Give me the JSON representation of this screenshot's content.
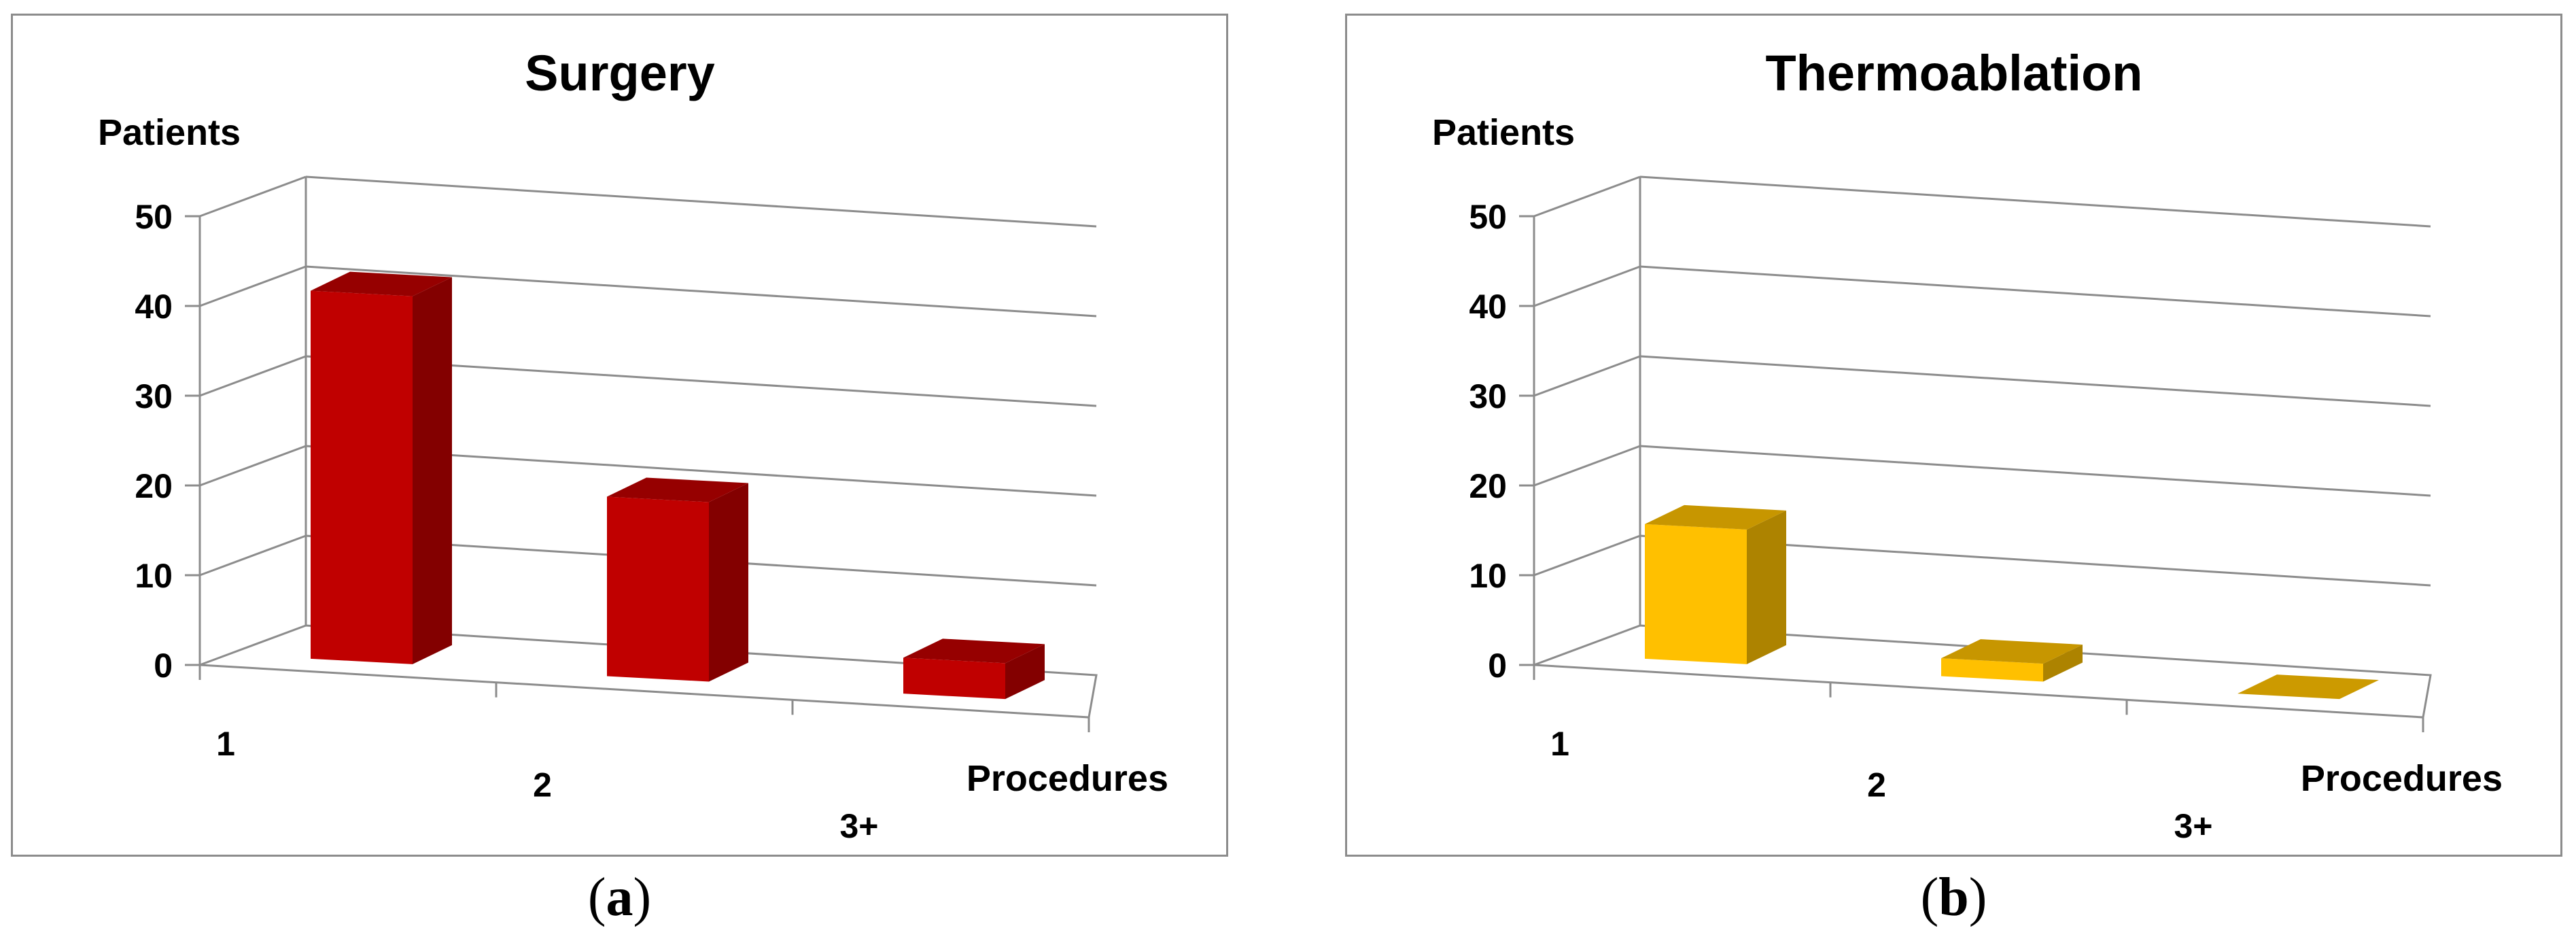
{
  "chart_data": [
    {
      "type": "bar",
      "title": "Surgery",
      "ylabel": "Patients",
      "xlabel": "Procedures",
      "categories": [
        "1",
        "2",
        "3+"
      ],
      "values": [
        41,
        20,
        4
      ],
      "ylim": [
        0,
        50
      ],
      "yticks": [
        "0",
        "10",
        "20",
        "30",
        "40",
        "50"
      ],
      "grid": true,
      "style": "3d-column",
      "color": "#c00000",
      "sub_caption": "a"
    },
    {
      "type": "bar",
      "title": "Thermoablation",
      "ylabel": "Patients",
      "xlabel": "Procedures",
      "categories": [
        "1",
        "2",
        "3+"
      ],
      "values": [
        15,
        2,
        0
      ],
      "ylim": [
        0,
        50
      ],
      "yticks": [
        "0",
        "10",
        "20",
        "30",
        "40",
        "50"
      ],
      "grid": true,
      "style": "3d-column",
      "color": "#ffc000",
      "sub_caption": "b"
    }
  ]
}
